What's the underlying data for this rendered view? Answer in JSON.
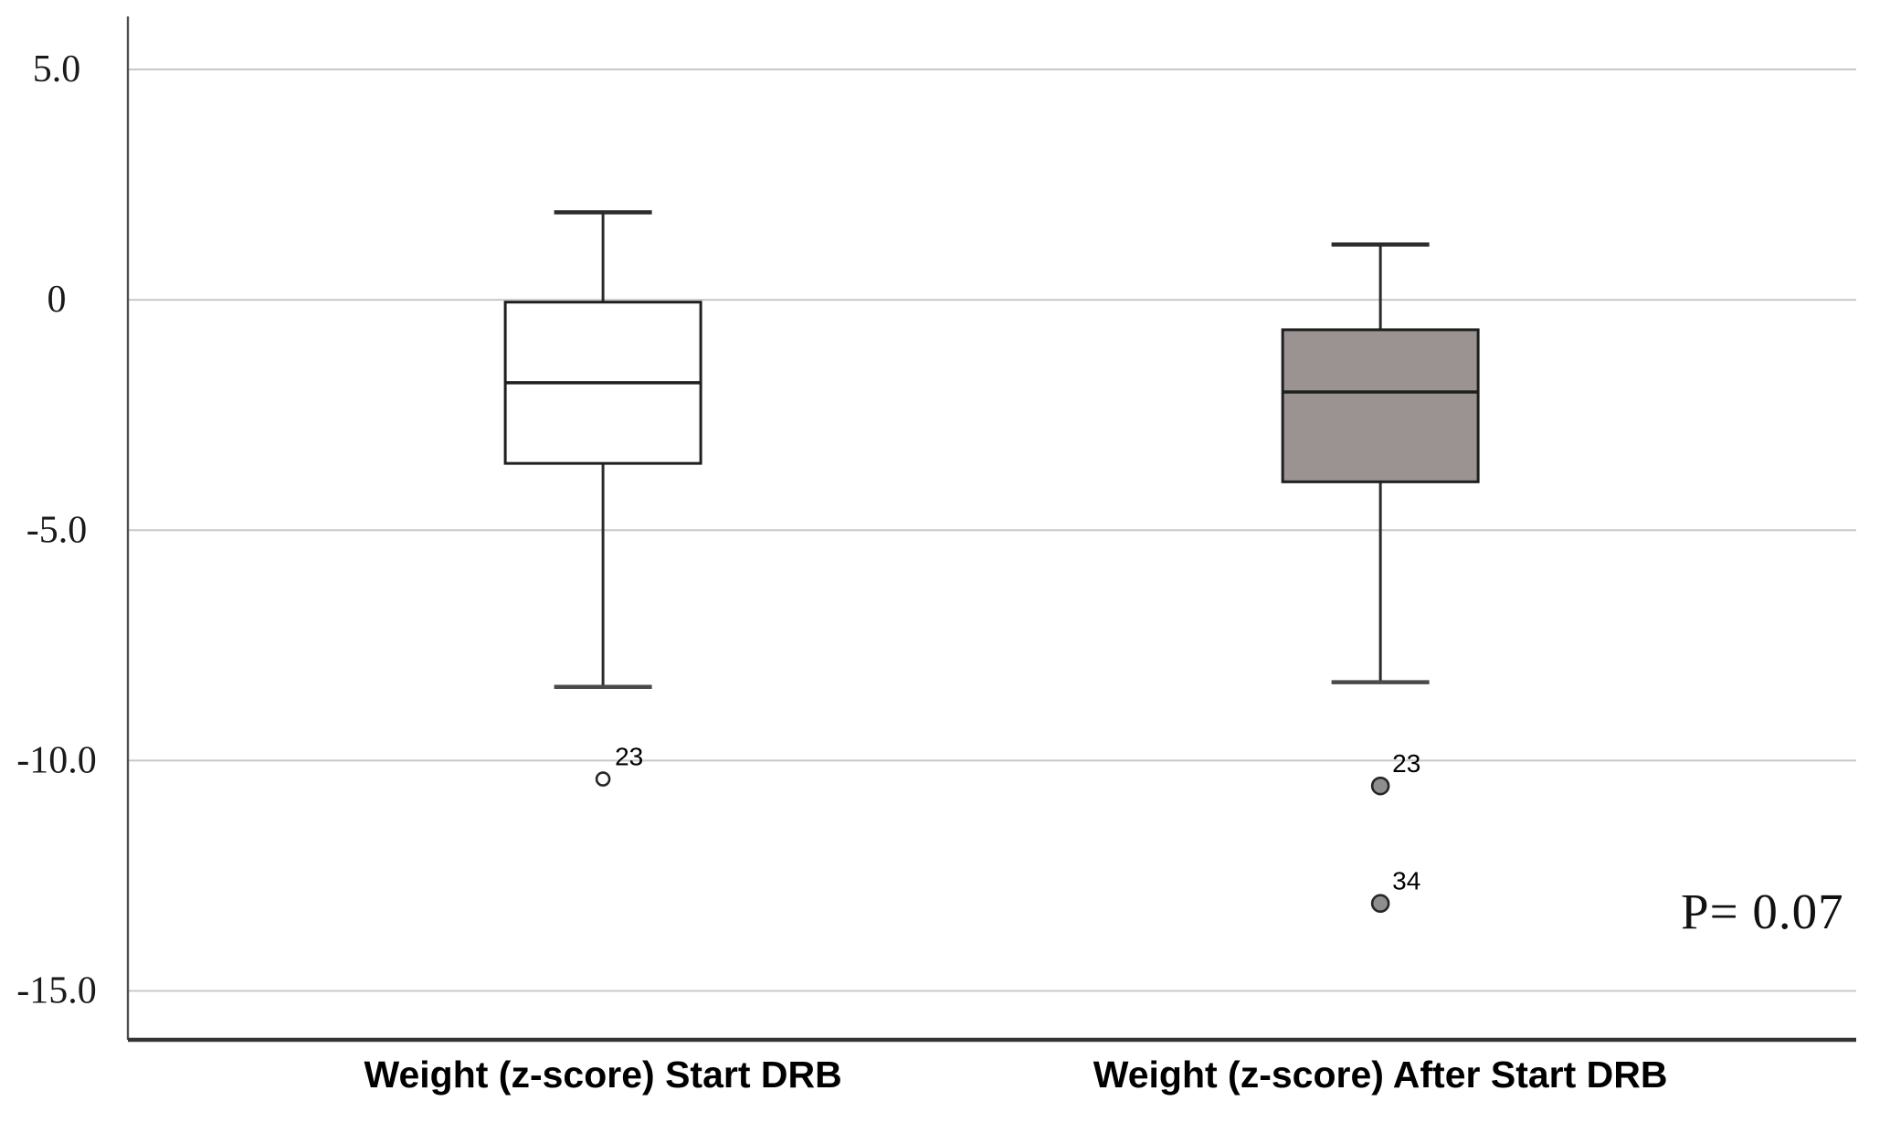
{
  "figure": {
    "background": "#ffffff"
  },
  "chart_data": {
    "type": "boxplot",
    "title": "",
    "xlabel": "",
    "ylabel": "",
    "grid": true,
    "y_axis": {
      "ticks": [
        5.0,
        0,
        -5.0,
        -10.0,
        -15.0
      ],
      "tick_labels": [
        "5.0",
        "0",
        "-5.0",
        "-10.0",
        "-15.0"
      ],
      "range": [
        -16.06,
        6.15
      ]
    },
    "categories": [
      "Weight (z-score) Start DRB",
      "Weight (z-score) After Start DRB"
    ],
    "series": [
      {
        "name": "Weight (z-score) Start DRB",
        "whisker_high": 1.9,
        "q3": -0.05,
        "median": -1.8,
        "q1": -3.55,
        "whisker_low": -8.4,
        "fill": "#ffffff",
        "outliers": [
          {
            "label": "23",
            "value": -10.4,
            "style": "open"
          }
        ]
      },
      {
        "name": "Weight (z-score) After Start DRB",
        "whisker_high": 1.2,
        "q3": -0.65,
        "median": -2.0,
        "q1": -3.95,
        "whisker_low": -8.3,
        "fill": "#9a9392",
        "outliers": [
          {
            "label": "23",
            "value": -10.55,
            "style": "filled"
          },
          {
            "label": "34",
            "value": -13.1,
            "style": "filled"
          }
        ]
      }
    ],
    "annotation": {
      "text": "P= 0.07"
    },
    "colors": {
      "gridline": "#c8c8c8",
      "y_axis_line": "#4d4d4d",
      "x_axis_line": "#333333",
      "box_outline": "#1f1f1f",
      "whisker": "#2b2b2b",
      "gray_box_fill": "#9a9392",
      "filled_outlier_fill": "#8e8e8e",
      "open_outlier_fill": "#ffffff"
    }
  }
}
